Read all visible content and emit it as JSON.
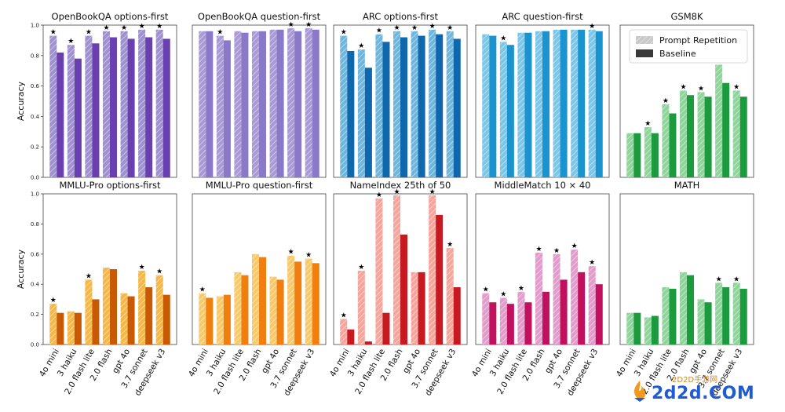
{
  "chart_data": {
    "type": "bar",
    "layout": "grid 2x5 small multiples",
    "ylabel": "Accuracy",
    "ylim": [
      0,
      1
    ],
    "yticks": [
      "0.0",
      "0.2",
      "0.4",
      "0.6",
      "0.8",
      "1.0"
    ],
    "categories": [
      "4o mini",
      "3 haiku",
      "2.0 flash lite",
      "2.0 flash",
      "gpt 4o",
      "3.7 sonnet",
      "deepseek v3"
    ],
    "legend": {
      "placement": "top-right",
      "entries": [
        {
          "name": "Prompt Repetition",
          "style": "hatched light"
        },
        {
          "name": "Baseline",
          "style": "solid dark"
        }
      ]
    },
    "panels": [
      {
        "title": "OpenBookQA options-first",
        "light": "#9f90d0",
        "dark": "#6a3fb0",
        "series": [
          {
            "name": "Prompt Repetition",
            "values": [
              0.93,
              0.87,
              0.93,
              0.96,
              0.96,
              0.97,
              0.97
            ]
          },
          {
            "name": "Baseline",
            "values": [
              0.82,
              0.78,
              0.88,
              0.92,
              0.91,
              0.92,
              0.91
            ]
          }
        ],
        "stars": [
          true,
          true,
          true,
          true,
          true,
          true,
          true
        ]
      },
      {
        "title": "OpenBookQA question-first",
        "light": "#a99ad6",
        "dark": "#8a78c8",
        "series": [
          {
            "name": "Prompt Repetition",
            "values": [
              0.96,
              0.93,
              0.96,
              0.96,
              0.97,
              0.98,
              0.98
            ]
          },
          {
            "name": "Baseline",
            "values": [
              0.96,
              0.9,
              0.95,
              0.96,
              0.97,
              0.96,
              0.97
            ]
          }
        ],
        "stars": [
          false,
          true,
          false,
          false,
          false,
          true,
          true
        ]
      },
      {
        "title": "ARC options-first",
        "light": "#6fb6dd",
        "dark": "#0f67ad",
        "series": [
          {
            "name": "Prompt Repetition",
            "values": [
              0.93,
              0.84,
              0.94,
              0.96,
              0.96,
              0.97,
              0.96
            ]
          },
          {
            "name": "Baseline",
            "values": [
              0.83,
              0.72,
              0.89,
              0.92,
              0.93,
              0.94,
              0.91
            ]
          }
        ],
        "stars": [
          true,
          true,
          true,
          true,
          true,
          true,
          true
        ]
      },
      {
        "title": "ARC question-first",
        "light": "#7cc6e8",
        "dark": "#1a93cf",
        "series": [
          {
            "name": "Prompt Repetition",
            "values": [
              0.94,
              0.89,
              0.95,
              0.96,
              0.97,
              0.97,
              0.97
            ]
          },
          {
            "name": "Baseline",
            "values": [
              0.93,
              0.87,
              0.95,
              0.96,
              0.97,
              0.97,
              0.96
            ]
          }
        ],
        "stars": [
          false,
          true,
          false,
          false,
          false,
          false,
          true
        ]
      },
      {
        "title": "GSM8K",
        "light": "#8fd49a",
        "dark": "#1c9a3e",
        "series": [
          {
            "name": "Prompt Repetition",
            "values": [
              0.29,
              0.33,
              0.48,
              0.57,
              0.56,
              0.74,
              0.57
            ]
          },
          {
            "name": "Baseline",
            "values": [
              0.29,
              0.29,
              0.42,
              0.54,
              0.53,
              0.62,
              0.53
            ]
          }
        ],
        "stars": [
          false,
          true,
          true,
          true,
          true,
          true,
          true
        ]
      },
      {
        "title": "MMLU-Pro options-first",
        "light": "#f5b848",
        "dark": "#c95a05",
        "series": [
          {
            "name": "Prompt Repetition",
            "values": [
              0.27,
              0.22,
              0.43,
              0.51,
              0.34,
              0.49,
              0.46
            ]
          },
          {
            "name": "Baseline",
            "values": [
              0.21,
              0.21,
              0.3,
              0.5,
              0.32,
              0.38,
              0.33
            ]
          }
        ],
        "stars": [
          true,
          false,
          true,
          false,
          false,
          true,
          true
        ]
      },
      {
        "title": "MMLU-Pro question-first",
        "light": "#f8c96a",
        "dark": "#f07f10",
        "series": [
          {
            "name": "Prompt Repetition",
            "values": [
              0.34,
              0.32,
              0.48,
              0.6,
              0.45,
              0.59,
              0.57
            ]
          },
          {
            "name": "Baseline",
            "values": [
              0.31,
              0.33,
              0.46,
              0.58,
              0.43,
              0.55,
              0.54
            ]
          }
        ],
        "stars": [
          true,
          false,
          false,
          false,
          false,
          true,
          true
        ]
      },
      {
        "title": "NameIndex 25th of 50",
        "light": "#f6a59c",
        "dark": "#c71a20",
        "series": [
          {
            "name": "Prompt Repetition",
            "values": [
              0.17,
              0.49,
              0.97,
              0.99,
              0.48,
              0.99,
              0.64
            ]
          },
          {
            "name": "Baseline",
            "values": [
              0.1,
              0.02,
              0.21,
              0.73,
              0.48,
              0.86,
              0.38
            ]
          }
        ],
        "stars": [
          true,
          true,
          true,
          true,
          false,
          true,
          true
        ]
      },
      {
        "title": "MiddleMatch 10 × 40",
        "light": "#e19ccb",
        "dark": "#c0105e",
        "series": [
          {
            "name": "Prompt Repetition",
            "values": [
              0.34,
              0.31,
              0.35,
              0.61,
              0.6,
              0.63,
              0.52
            ]
          },
          {
            "name": "Baseline",
            "values": [
              0.28,
              0.27,
              0.28,
              0.35,
              0.43,
              0.48,
              0.4
            ]
          }
        ],
        "stars": [
          true,
          true,
          true,
          true,
          true,
          true,
          true
        ]
      },
      {
        "title": "MATH",
        "light": "#8fd49a",
        "dark": "#1c9a3e",
        "series": [
          {
            "name": "Prompt Repetition",
            "values": [
              0.21,
              0.18,
              0.38,
              0.48,
              0.3,
              0.41,
              0.41
            ]
          },
          {
            "name": "Baseline",
            "values": [
              0.21,
              0.19,
              0.37,
              0.46,
              0.28,
              0.38,
              0.37
            ]
          }
        ],
        "stars": [
          false,
          false,
          false,
          false,
          false,
          true,
          true
        ]
      }
    ]
  },
  "watermark": {
    "brand": "2d2d.COM",
    "subtitle": "2D2D手游网"
  }
}
